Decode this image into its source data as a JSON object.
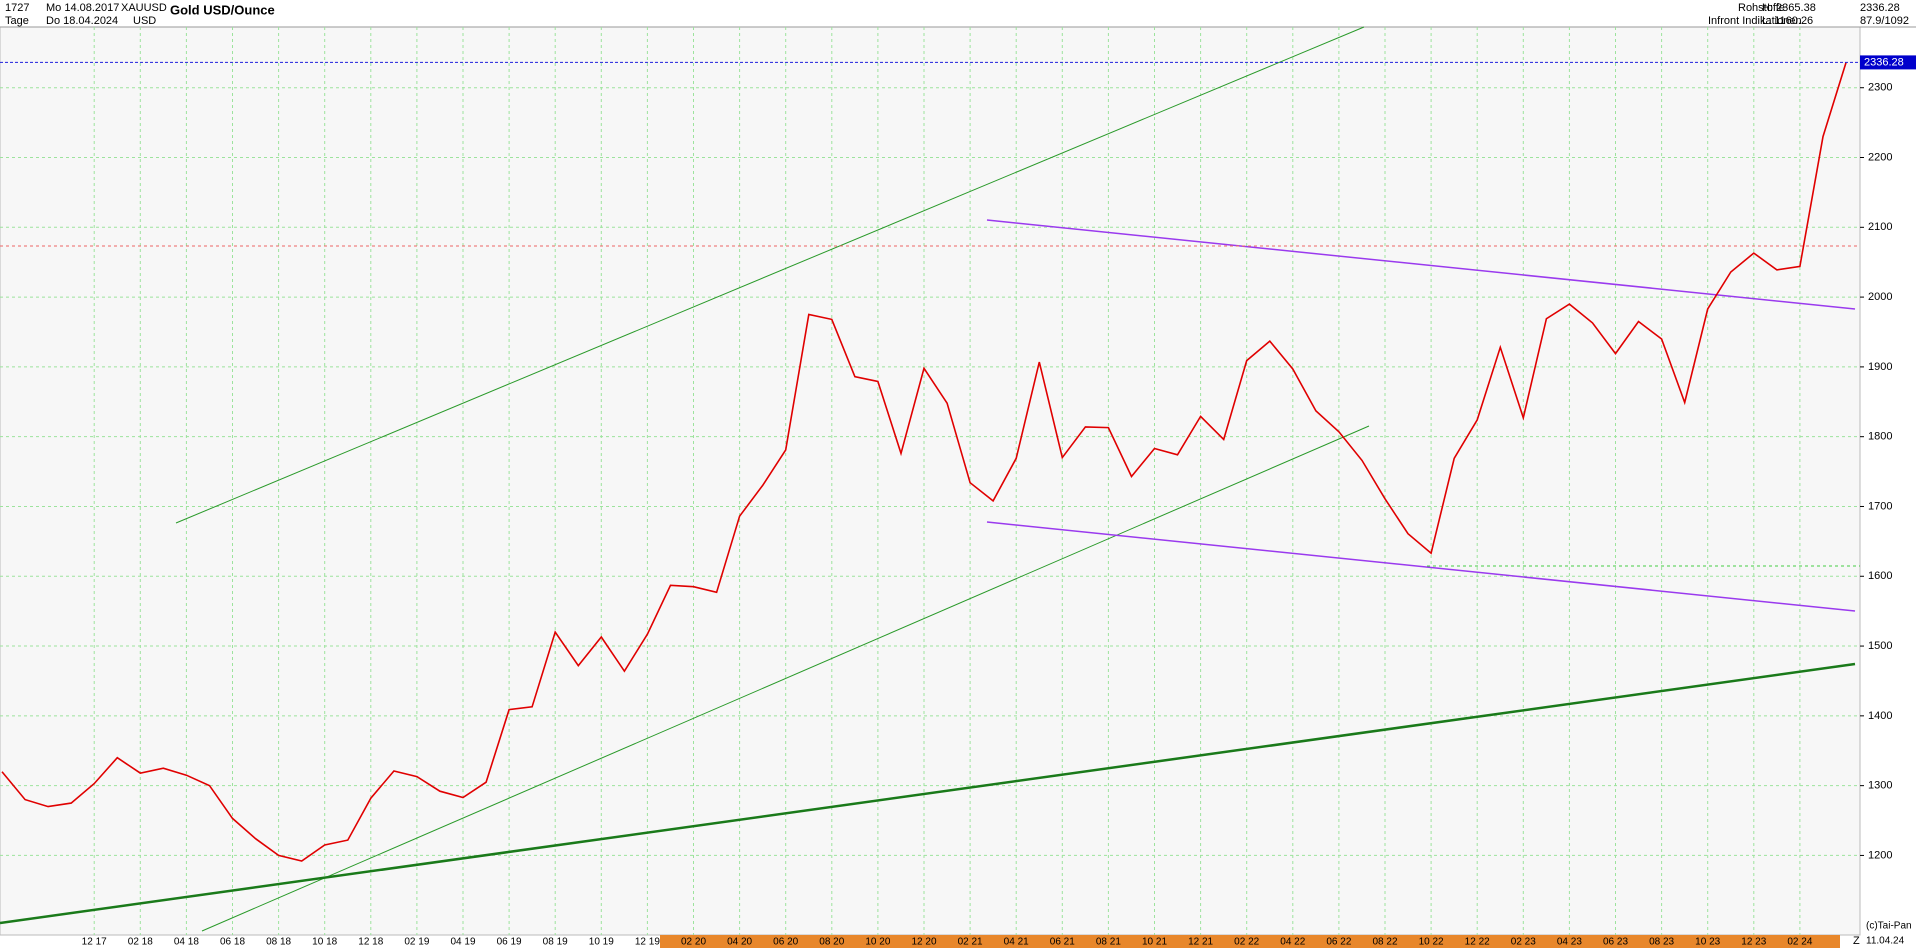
{
  "header": {
    "bars": "1727",
    "start": "Mo 14.08.2017",
    "symbol": "XAUUSD",
    "period": "Tage",
    "end": "Do 18.04.2024",
    "currency": "USD",
    "group": "Rohstoffe",
    "high": "H: 2365.38",
    "source": "Infront Indikationen",
    "low": "L: 1160.26",
    "stats": "87.9/1092",
    "footer_mark": "Z",
    "copyright": "(c)Tai-Pan",
    "footer_date": "11.04.24"
  },
  "chart_data": {
    "type": "line",
    "title": "Gold USD/Ounce",
    "color": "#e00000",
    "grid": true,
    "ylim": [
      1086,
      2387
    ],
    "yticks": [
      1200,
      1300,
      1400,
      1500,
      1600,
      1700,
      1800,
      1900,
      2000,
      2100,
      2200,
      2300
    ],
    "last_price": 2336.28,
    "categories": [
      null,
      null,
      null,
      null,
      "12 17",
      null,
      "02 18",
      null,
      "04 18",
      null,
      "06 18",
      null,
      "08 18",
      null,
      "10 18",
      null,
      "12 18",
      null,
      "02 19",
      null,
      "04 19",
      null,
      "06 19",
      null,
      "08 19",
      null,
      "10 19",
      null,
      "12 19",
      null,
      "02 20",
      null,
      "04 20",
      null,
      "06 20",
      null,
      "08 20",
      null,
      "10 20",
      null,
      "12 20",
      null,
      "02 21",
      null,
      "04 21",
      null,
      "06 21",
      null,
      "08 21",
      null,
      "10 21",
      null,
      "12 21",
      null,
      "02 22",
      null,
      "04 22",
      null,
      "06 22",
      null,
      "08 22",
      null,
      "10 22",
      null,
      "12 22",
      null,
      "02 23",
      null,
      "04 23",
      null,
      "06 23",
      null,
      "08 23",
      null,
      "10 23",
      null,
      "12 23",
      null,
      "02 24",
      null,
      null
    ],
    "values": [
      1320,
      1280,
      1270,
      1275,
      1303,
      1340,
      1318,
      1325,
      1315,
      1300,
      1253,
      1224,
      1200,
      1192,
      1215,
      1222,
      1282,
      1321,
      1313,
      1292,
      1283,
      1305,
      1409,
      1413,
      1520,
      1472,
      1513,
      1464,
      1517,
      1587,
      1585,
      1577,
      1686,
      1730,
      1781,
      1975,
      1968,
      1886,
      1879,
      1776,
      1898,
      1848,
      1734,
      1708,
      1769,
      1907,
      1770,
      1814,
      1813,
      1743,
      1783,
      1774,
      1829,
      1796,
      1909,
      1937,
      1897,
      1837,
      1807,
      1766,
      1711,
      1661,
      1633,
      1769,
      1824,
      1928,
      1827,
      1969,
      1990,
      1963,
      1919,
      1965,
      1940,
      1849,
      1983,
      2036,
      2063,
      2039,
      2044,
      2230,
      2336
    ]
  }
}
